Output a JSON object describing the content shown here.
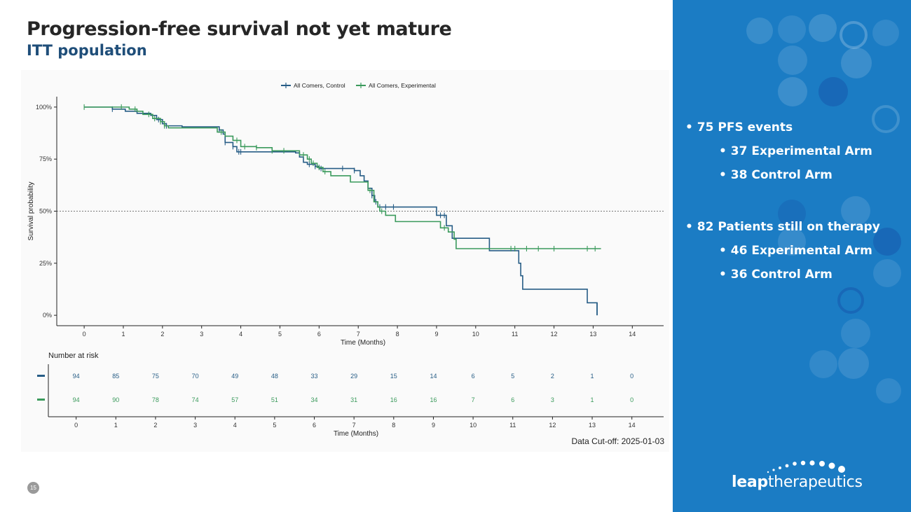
{
  "slide": {
    "title": "Progression-free survival not yet mature",
    "subtitle": "ITT population",
    "cutoff": "Data Cut-off: 2025-01-03",
    "page_number": "15"
  },
  "side_panel": {
    "bullet_1": "75 PFS events",
    "bullet_1a": "37 Experimental Arm",
    "bullet_1b": "38 Control Arm",
    "bullet_2": "82 Patients still on therapy",
    "bullet_2a": "46 Experimental Arm",
    "bullet_2b": "36 Control Arm",
    "logo_bold": "leap",
    "logo_rest": "therapeutics",
    "color": "#1b7cc4"
  },
  "chart_data": {
    "type": "line",
    "step": true,
    "xlabel": "Time (Months)",
    "ylabel": "Survival probability",
    "xlim": [
      -0.7,
      14.8
    ],
    "ylim": [
      -0.05,
      1.05
    ],
    "x_ticks": [
      0,
      1,
      2,
      3,
      4,
      5,
      6,
      7,
      8,
      9,
      10,
      11,
      12,
      13,
      14
    ],
    "y_ticks": [
      0,
      0.25,
      0.5,
      0.75,
      1
    ],
    "y_tick_labels": [
      "0%",
      "25%",
      "50%",
      "75%",
      "100%"
    ],
    "reference_line": 0.5,
    "legend_position": "top",
    "series": [
      {
        "name": "All Comers, Control",
        "color": "#275d86",
        "steps": [
          [
            0,
            1.0
          ],
          [
            0.72,
            0.99
          ],
          [
            1.05,
            0.98
          ],
          [
            1.35,
            0.97
          ],
          [
            1.7,
            0.96
          ],
          [
            1.85,
            0.94
          ],
          [
            2.0,
            0.92
          ],
          [
            2.1,
            0.91
          ],
          [
            2.5,
            0.905
          ],
          [
            3.45,
            0.89
          ],
          [
            3.55,
            0.87
          ],
          [
            3.6,
            0.83
          ],
          [
            3.8,
            0.81
          ],
          [
            3.9,
            0.785
          ],
          [
            5.4,
            0.78
          ],
          [
            5.5,
            0.76
          ],
          [
            5.6,
            0.735
          ],
          [
            5.7,
            0.725
          ],
          [
            5.9,
            0.715
          ],
          [
            6.0,
            0.705
          ],
          [
            6.9,
            0.695
          ],
          [
            7.05,
            0.67
          ],
          [
            7.15,
            0.645
          ],
          [
            7.25,
            0.61
          ],
          [
            7.35,
            0.575
          ],
          [
            7.42,
            0.545
          ],
          [
            7.5,
            0.52
          ],
          [
            9.0,
            0.48
          ],
          [
            9.25,
            0.43
          ],
          [
            9.4,
            0.37
          ],
          [
            10.35,
            0.31
          ],
          [
            11.1,
            0.25
          ],
          [
            11.15,
            0.19
          ],
          [
            11.2,
            0.125
          ],
          [
            12.85,
            0.06
          ],
          [
            13.1,
            0.0
          ]
        ],
        "end": 13.1,
        "censor_x": [
          0.72,
          1.9,
          2.1,
          3.45,
          3.6,
          3.8,
          3.95,
          4.0,
          5.75,
          5.9,
          6.05,
          6.6,
          6.9,
          7.35,
          7.45,
          7.55,
          7.7,
          7.9,
          9.1,
          9.2
        ],
        "risk": [
          94,
          85,
          75,
          70,
          49,
          48,
          33,
          29,
          15,
          14,
          6,
          5,
          2,
          1,
          0
        ]
      },
      {
        "name": "All Comers, Experimental",
        "color": "#3b9a5c",
        "steps": [
          [
            0,
            1.0
          ],
          [
            1.15,
            0.99
          ],
          [
            1.35,
            0.98
          ],
          [
            1.5,
            0.965
          ],
          [
            1.75,
            0.945
          ],
          [
            1.95,
            0.93
          ],
          [
            2.05,
            0.91
          ],
          [
            2.15,
            0.9
          ],
          [
            3.4,
            0.88
          ],
          [
            3.6,
            0.86
          ],
          [
            3.8,
            0.84
          ],
          [
            4.0,
            0.81
          ],
          [
            4.4,
            0.805
          ],
          [
            4.8,
            0.79
          ],
          [
            5.5,
            0.77
          ],
          [
            5.7,
            0.75
          ],
          [
            5.8,
            0.73
          ],
          [
            5.95,
            0.71
          ],
          [
            6.1,
            0.69
          ],
          [
            6.3,
            0.67
          ],
          [
            6.8,
            0.64
          ],
          [
            7.25,
            0.6
          ],
          [
            7.4,
            0.545
          ],
          [
            7.5,
            0.52
          ],
          [
            7.55,
            0.5
          ],
          [
            7.7,
            0.48
          ],
          [
            7.95,
            0.45
          ],
          [
            9.1,
            0.42
          ],
          [
            9.3,
            0.4
          ],
          [
            9.45,
            0.365
          ],
          [
            9.5,
            0.32
          ]
        ],
        "end": 13.2,
        "censor_x": [
          0.0,
          0.95,
          1.3,
          1.65,
          1.8,
          1.95,
          2.05,
          3.5,
          3.9,
          4.1,
          4.4,
          4.8,
          5.1,
          5.6,
          5.75,
          5.85,
          6.0,
          6.15,
          7.3,
          7.6,
          9.2,
          10.9,
          11.0,
          11.3,
          11.6,
          12.0,
          12.85,
          13.05
        ],
        "risk": [
          94,
          90,
          78,
          74,
          57,
          51,
          34,
          31,
          16,
          16,
          7,
          6,
          3,
          1,
          0
        ]
      }
    ],
    "risk_table": {
      "title": "Number at risk",
      "xlabel": "Time (Months)"
    }
  }
}
